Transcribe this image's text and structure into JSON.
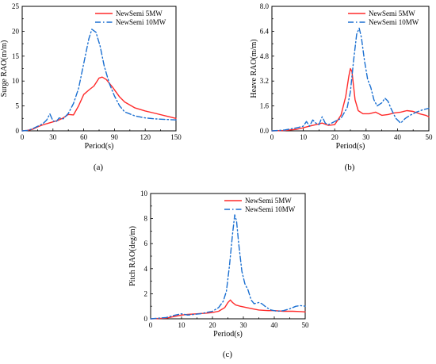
{
  "chart_data": [
    {
      "type": "line",
      "caption": "(a)",
      "xlabel": "Period(s)",
      "ylabel": "Surge RAO(m/m)",
      "xlim": [
        0,
        150
      ],
      "ylim": [
        0,
        25
      ],
      "xticks": [
        0,
        30,
        60,
        90,
        120,
        150
      ],
      "yticks": [
        0,
        5,
        10,
        15,
        20,
        25
      ],
      "legend_position": "top-right",
      "grid": false,
      "series": [
        {
          "name": "NewSemi 5MW",
          "color": "#ff2a2a",
          "style": "solid",
          "points": [
            [
              0,
              0
            ],
            [
              5,
              0.1
            ],
            [
              10,
              0.3
            ],
            [
              15,
              0.8
            ],
            [
              20,
              1.2
            ],
            [
              25,
              1.5
            ],
            [
              30,
              1.8
            ],
            [
              35,
              2.1
            ],
            [
              40,
              2.6
            ],
            [
              45,
              3.3
            ],
            [
              50,
              3.2
            ],
            [
              55,
              5.0
            ],
            [
              60,
              7.3
            ],
            [
              65,
              8.2
            ],
            [
              70,
              9.0
            ],
            [
              75,
              10.6
            ],
            [
              78,
              10.8
            ],
            [
              82,
              10.3
            ],
            [
              88,
              8.8
            ],
            [
              95,
              6.8
            ],
            [
              100,
              5.8
            ],
            [
              110,
              4.6
            ],
            [
              120,
              4.0
            ],
            [
              130,
              3.5
            ],
            [
              140,
              3.0
            ],
            [
              150,
              2.5
            ]
          ]
        },
        {
          "name": "NewSemi 10MW",
          "color": "#1a6fd1",
          "style": "dashdot",
          "points": [
            [
              0,
              0
            ],
            [
              5,
              0.1
            ],
            [
              10,
              0.4
            ],
            [
              15,
              0.9
            ],
            [
              20,
              1.4
            ],
            [
              24,
              2.2
            ],
            [
              27,
              3.4
            ],
            [
              30,
              2.0
            ],
            [
              33,
              1.8
            ],
            [
              36,
              2.6
            ],
            [
              40,
              2.4
            ],
            [
              45,
              3.5
            ],
            [
              50,
              5.5
            ],
            [
              55,
              8.5
            ],
            [
              60,
              13.5
            ],
            [
              65,
              18.5
            ],
            [
              68,
              20.4
            ],
            [
              72,
              19.8
            ],
            [
              76,
              17.0
            ],
            [
              80,
              13.0
            ],
            [
              85,
              9.5
            ],
            [
              90,
              7.0
            ],
            [
              95,
              5.0
            ],
            [
              100,
              3.8
            ],
            [
              110,
              3.0
            ],
            [
              120,
              2.6
            ],
            [
              130,
              2.4
            ],
            [
              140,
              2.3
            ],
            [
              150,
              2.2
            ]
          ]
        }
      ]
    },
    {
      "type": "line",
      "caption": "(b)",
      "xlabel": "Period(s)",
      "ylabel": "Heave RAO(m/m)",
      "xlim": [
        0,
        50
      ],
      "ylim": [
        0,
        8.0
      ],
      "xticks": [
        0,
        10,
        20,
        30,
        40,
        50
      ],
      "yticks": [
        0.0,
        1.6,
        3.2,
        4.8,
        6.4,
        8.0
      ],
      "ytick_labels": [
        "0.0",
        "1.6",
        "3.2",
        "4.8",
        "6.4",
        "8.0"
      ],
      "legend_position": "top-right",
      "grid": false,
      "series": [
        {
          "name": "NewSemi 5MW",
          "color": "#ff2a2a",
          "style": "solid",
          "points": [
            [
              0,
              0
            ],
            [
              4,
              0.02
            ],
            [
              8,
              0.1
            ],
            [
              10,
              0.2
            ],
            [
              12,
              0.3
            ],
            [
              14,
              0.4
            ],
            [
              16,
              0.5
            ],
            [
              18,
              0.35
            ],
            [
              20,
              0.4
            ],
            [
              22,
              1.0
            ],
            [
              23.5,
              2.2
            ],
            [
              24.5,
              3.5
            ],
            [
              25,
              4.0
            ],
            [
              25.5,
              3.8
            ],
            [
              26.5,
              2.0
            ],
            [
              27.5,
              1.3
            ],
            [
              29,
              1.1
            ],
            [
              31,
              1.1
            ],
            [
              33,
              1.2
            ],
            [
              35,
              1.0
            ],
            [
              37,
              1.05
            ],
            [
              39,
              1.15
            ],
            [
              41,
              1.2
            ],
            [
              43,
              1.3
            ],
            [
              45,
              1.25
            ],
            [
              47,
              1.1
            ],
            [
              49,
              1.0
            ],
            [
              50,
              0.9
            ]
          ]
        },
        {
          "name": "NewSemi 10MW",
          "color": "#1a6fd1",
          "style": "dashdot",
          "points": [
            [
              0,
              0
            ],
            [
              4,
              0.05
            ],
            [
              8,
              0.2
            ],
            [
              10,
              0.3
            ],
            [
              11,
              0.6
            ],
            [
              12,
              0.3
            ],
            [
              13,
              0.7
            ],
            [
              14,
              0.5
            ],
            [
              15,
              0.4
            ],
            [
              16,
              0.9
            ],
            [
              17,
              0.5
            ],
            [
              18,
              0.4
            ],
            [
              20,
              0.6
            ],
            [
              22,
              0.8
            ],
            [
              24,
              1.5
            ],
            [
              25,
              2.5
            ],
            [
              26,
              4.5
            ],
            [
              27,
              6.2
            ],
            [
              27.8,
              6.6
            ],
            [
              28.5,
              6.0
            ],
            [
              29.5,
              4.5
            ],
            [
              30.5,
              3.3
            ],
            [
              31.5,
              2.8
            ],
            [
              32.5,
              2.0
            ],
            [
              33.5,
              1.6
            ],
            [
              35,
              1.8
            ],
            [
              36,
              2.1
            ],
            [
              37,
              1.9
            ],
            [
              38,
              1.4
            ],
            [
              39.5,
              0.8
            ],
            [
              41,
              0.5
            ],
            [
              42.5,
              0.8
            ],
            [
              44,
              1.0
            ],
            [
              46,
              1.2
            ],
            [
              48,
              1.35
            ],
            [
              50,
              1.45
            ]
          ]
        }
      ]
    },
    {
      "type": "line",
      "caption": "(c)",
      "xlabel": "Period(s)",
      "ylabel": "Pitch RAO(deg/m)",
      "xlim": [
        0,
        50
      ],
      "ylim": [
        0,
        10
      ],
      "xticks": [
        0,
        10,
        20,
        30,
        40,
        50
      ],
      "yticks": [
        0,
        2,
        4,
        6,
        8,
        10
      ],
      "legend_position": "top-right",
      "grid": false,
      "series": [
        {
          "name": "NewSemi 5MW",
          "color": "#ff2a2a",
          "style": "solid",
          "points": [
            [
              0,
              0
            ],
            [
              5,
              0.05
            ],
            [
              8,
              0.2
            ],
            [
              10,
              0.3
            ],
            [
              12,
              0.35
            ],
            [
              15,
              0.4
            ],
            [
              18,
              0.45
            ],
            [
              20,
              0.5
            ],
            [
              22,
              0.6
            ],
            [
              24,
              0.9
            ],
            [
              25,
              1.3
            ],
            [
              25.8,
              1.5
            ],
            [
              26.5,
              1.3
            ],
            [
              27.5,
              1.1
            ],
            [
              29,
              1.0
            ],
            [
              31,
              0.9
            ],
            [
              33,
              0.8
            ],
            [
              35,
              0.7
            ],
            [
              38,
              0.65
            ],
            [
              40,
              0.65
            ],
            [
              43,
              0.6
            ],
            [
              46,
              0.6
            ],
            [
              48,
              0.58
            ],
            [
              50,
              0.55
            ]
          ]
        },
        {
          "name": "NewSemi 10MW",
          "color": "#1a6fd1",
          "style": "dashdot",
          "points": [
            [
              0,
              0
            ],
            [
              5,
              0.1
            ],
            [
              8,
              0.3
            ],
            [
              10,
              0.4
            ],
            [
              12,
              0.3
            ],
            [
              14,
              0.35
            ],
            [
              16,
              0.4
            ],
            [
              18,
              0.5
            ],
            [
              20,
              0.6
            ],
            [
              22,
              0.9
            ],
            [
              23.5,
              1.4
            ],
            [
              24.5,
              2.2
            ],
            [
              25.5,
              4.2
            ],
            [
              26.5,
              6.8
            ],
            [
              27.2,
              8.3
            ],
            [
              27.8,
              7.8
            ],
            [
              28.5,
              6.0
            ],
            [
              29.5,
              3.8
            ],
            [
              30.5,
              2.8
            ],
            [
              31.5,
              2.3
            ],
            [
              32.5,
              1.5
            ],
            [
              33.5,
              1.2
            ],
            [
              35,
              1.3
            ],
            [
              36,
              1.2
            ],
            [
              37.5,
              0.9
            ],
            [
              39,
              0.7
            ],
            [
              41,
              0.6
            ],
            [
              43,
              0.65
            ],
            [
              45,
              0.8
            ],
            [
              47,
              1.0
            ],
            [
              48.5,
              1.05
            ],
            [
              50,
              1.0
            ]
          ]
        }
      ]
    }
  ]
}
